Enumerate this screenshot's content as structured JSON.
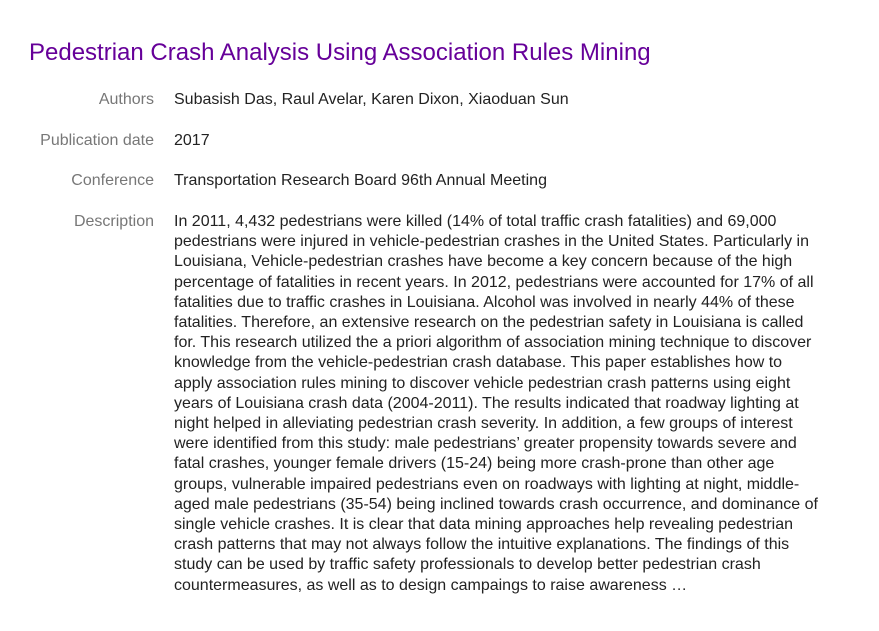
{
  "title": "Pedestrian Crash Analysis Using Association Rules Mining",
  "fields": {
    "authors": {
      "label": "Authors",
      "value": "Subasish Das, Raul Avelar, Karen Dixon, Xiaoduan Sun"
    },
    "publication_date": {
      "label": "Publication date",
      "value": "2017"
    },
    "conference": {
      "label": "Conference",
      "value": "Transportation Research Board 96th Annual Meeting"
    },
    "description": {
      "label": "Description",
      "value": "In 2011, 4,432 pedestrians were killed (14% of total traffic crash fatalities) and 69,000 pedestrians were injured in vehicle-pedestrian crashes in the United States. Particularly in Louisiana, Vehicle-pedestrian crashes have become a key concern because of the high percentage of fatalities in recent years. In 2012, pedestrians were accounted for 17% of all fatalities due to traffic crashes in Louisiana. Alcohol was involved in nearly 44% of these fatalities. Therefore, an extensive research on the pedestrian safety in Louisiana is called for. This research utilized the a priori algorithm of association mining technique to discover knowledge from the vehicle-pedestrian crash database. This paper establishes how to apply association rules mining to discover vehicle pedestrian crash patterns using eight years of Louisiana crash data (2004-2011). The results indicated that roadway lighting at night helped in alleviating pedestrian crash severity. In addition, a few groups of interest were identified from this study: male pedestrians’ greater propensity towards severe and fatal crashes, younger female drivers (15-24) being more crash-prone than other age groups, vulnerable impaired pedestrians even on roadways with lighting at night, middle-aged male pedestrians (35-54) being inclined towards crash occurrence, and dominance of single vehicle crashes. It is clear that data mining approaches help revealing pedestrian crash patterns that may not always follow the intuitive explanations. The findings of this study can be used by traffic safety professionals to develop better pedestrian crash countermeasures, as well as to design campaings to raise awareness …"
    }
  }
}
